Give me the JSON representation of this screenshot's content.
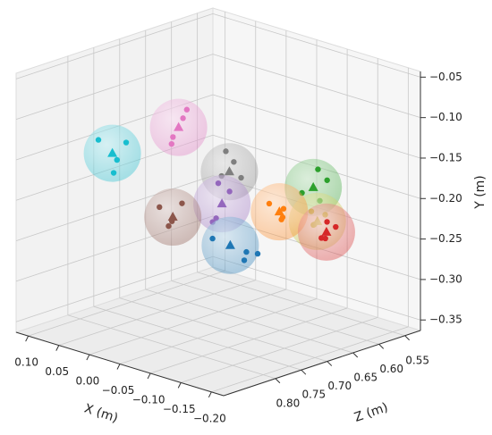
{
  "chart_data": {
    "type": "scatter3d",
    "x_label": "X (m)",
    "y_label": "Y (m)",
    "z_label": "Z (m)",
    "xlim": [
      -0.22,
      0.12
    ],
    "ylim": [
      -0.363,
      -0.043
    ],
    "zlim": [
      0.52,
      0.9
    ],
    "xticks": [
      {
        "value": 0.1,
        "label": "0.10"
      },
      {
        "value": 0.05,
        "label": "0.05"
      },
      {
        "value": 0,
        "label": "0.00"
      },
      {
        "value": -0.05,
        "label": "−0.05"
      },
      {
        "value": -0.1,
        "label": "−0.10"
      },
      {
        "value": -0.15,
        "label": "−0.15"
      },
      {
        "value": -0.2,
        "label": "−0.20"
      }
    ],
    "yticks": [
      {
        "value": -0.05,
        "label": "−0.05"
      },
      {
        "value": -0.1,
        "label": "−0.10"
      },
      {
        "value": -0.15,
        "label": "−0.15"
      },
      {
        "value": -0.2,
        "label": "−0.20"
      },
      {
        "value": -0.25,
        "label": "−0.25"
      },
      {
        "value": -0.3,
        "label": "−0.30"
      },
      {
        "value": -0.35,
        "label": "−0.35"
      }
    ],
    "zticks": [
      0.55,
      {
        "value": 0.6,
        "label": "0.60"
      },
      0.65,
      {
        "value": 0.7,
        "label": "0.70"
      },
      0.75,
      {
        "value": 0.8,
        "label": "0.80"
      }
    ],
    "grid": true,
    "series": [
      {
        "color": "#17becf",
        "center": {
          "x": 0.059,
          "y": -0.152,
          "z": 0.786
        },
        "x": [
          0.07,
          0.05,
          0.065,
          0.045
        ],
        "y": [
          -0.135,
          -0.14,
          -0.165,
          -0.17
        ],
        "z": [
          0.8,
          0.77,
          0.77,
          0.8
        ]
      },
      {
        "color": "#e377c2",
        "center": {
          "x": 0.015,
          "y": -0.126,
          "z": 0.71
        },
        "x": [
          0.01,
          0.012,
          0.02,
          0.018
        ],
        "y": [
          -0.105,
          -0.115,
          -0.138,
          -0.145
        ],
        "z": [
          0.7,
          0.705,
          0.715,
          0.72
        ]
      },
      {
        "color": "#8c564b",
        "center": {
          "x": -0.04,
          "y": -0.208,
          "z": 0.786
        },
        "x": [
          -0.03,
          -0.05,
          -0.045,
          -0.025
        ],
        "y": [
          -0.195,
          -0.19,
          -0.215,
          -0.22
        ],
        "z": [
          0.8,
          0.78,
          0.8,
          0.77
        ]
      },
      {
        "color": "#9467bd",
        "center": {
          "x": -0.056,
          "y": -0.204,
          "z": 0.71
        },
        "x": [
          -0.05,
          -0.06,
          -0.055,
          -0.045
        ],
        "y": [
          -0.18,
          -0.19,
          -0.22,
          -0.228
        ],
        "z": [
          0.71,
          0.7,
          0.72,
          0.715
        ]
      },
      {
        "color": "#7f7f7f",
        "center": {
          "x": -0.036,
          "y": -0.177,
          "z": 0.672
        },
        "x": [
          -0.02,
          -0.05,
          -0.03,
          -0.045
        ],
        "y": [
          -0.158,
          -0.16,
          -0.182,
          -0.185
        ],
        "z": [
          0.66,
          0.68,
          0.68,
          0.66
        ]
      },
      {
        "color": "#1f77b4",
        "center": {
          "x": -0.118,
          "y": -0.229,
          "z": 0.767
        },
        "x": [
          -0.1,
          -0.13,
          -0.14,
          -0.135
        ],
        "y": [
          -0.222,
          -0.238,
          -0.24,
          -0.245
        ],
        "z": [
          0.78,
          0.75,
          0.74,
          0.76
        ]
      },
      {
        "color": "#ff7f0e",
        "center": {
          "x": -0.134,
          "y": -0.2,
          "z": 0.691
        },
        "x": [
          -0.125,
          -0.14,
          -0.13,
          -0.145
        ],
        "y": [
          -0.19,
          -0.195,
          -0.21,
          -0.205
        ],
        "z": [
          0.7,
          0.69,
          0.68,
          0.7
        ]
      },
      {
        "color": "#2ca02c",
        "center": {
          "x": -0.125,
          "y": -0.188,
          "z": 0.615
        },
        "x": [
          -0.12,
          -0.135,
          -0.115,
          -0.14
        ],
        "y": [
          -0.17,
          -0.18,
          -0.195,
          -0.2
        ],
        "z": [
          0.6,
          0.6,
          0.625,
          0.62
        ]
      },
      {
        "color": "#bcbd22",
        "center": {
          "x": -0.164,
          "y": -0.213,
          "z": 0.653
        },
        "x": [
          -0.16,
          -0.17,
          -0.155,
          -0.165
        ],
        "y": [
          -0.2,
          -0.205,
          -0.22,
          -0.215
        ],
        "z": [
          0.66,
          0.645,
          0.65,
          0.66
        ]
      },
      {
        "color": "#d62728",
        "center": {
          "x": -0.195,
          "y": -0.215,
          "z": 0.672
        },
        "x": [
          -0.19,
          -0.2,
          -0.185,
          -0.2
        ],
        "y": [
          -0.205,
          -0.22,
          -0.225,
          -0.21
        ],
        "z": [
          0.665,
          0.68,
          0.67,
          0.66
        ]
      }
    ]
  }
}
